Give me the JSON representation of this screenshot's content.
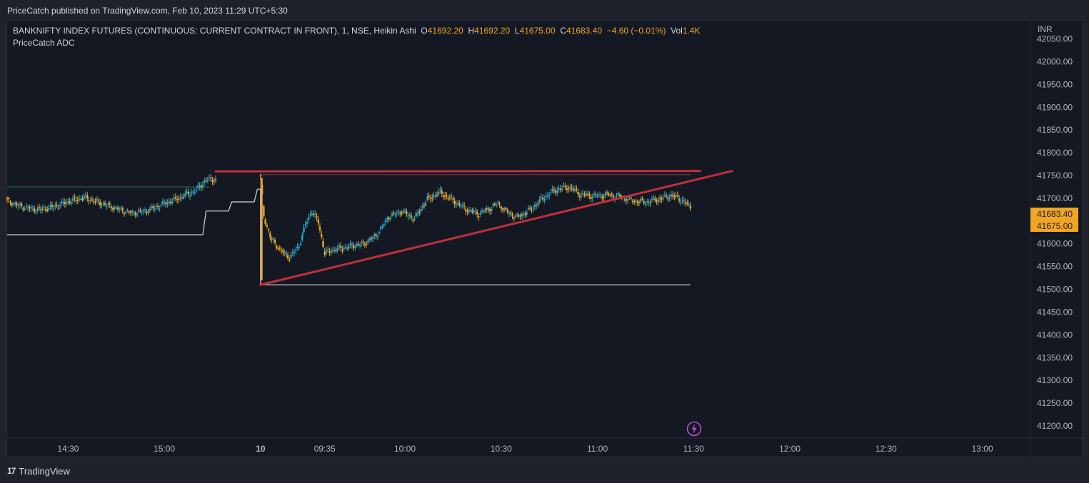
{
  "header": {
    "published": "PriceCatch published on TradingView.com, Feb 10, 2023 11:29 UTC+5:30"
  },
  "legend": {
    "symbol": "BANKNIFTY INDEX FUTURES (CONTINUOUS: CURRENT CONTRACT IN FRONT), 1, NSE, Heikin Ashi",
    "o_label": "O",
    "o_value": "41692.20",
    "h_label": "H",
    "h_value": "41692.20",
    "l_label": "L",
    "l_value": "41675.00",
    "c_label": "C",
    "c_value": "41683.40",
    "change": "−4.60 (−0.01%)",
    "vol_label": "Vol",
    "vol_value": "1.4K",
    "indicator": "PriceCatch ADC"
  },
  "footer": {
    "brand": "TradingView",
    "logo_text": "17"
  },
  "colors": {
    "up": "#26a6c9",
    "down": "#f0a524",
    "trendline": "#c0303a",
    "indicator": "#d8d8d8",
    "axis_text": "#b2b5be",
    "price_tag": "#f0a524"
  },
  "chart_data": {
    "type": "candlestick",
    "chart_style": "Heikin Ashi",
    "currency": "INR",
    "y_axis": {
      "unit": "INR",
      "ylim": [
        41175,
        42090
      ],
      "ticks": [
        "42050.00",
        "42000.00",
        "41950.00",
        "41900.00",
        "41850.00",
        "41800.00",
        "41750.00",
        "41700.00",
        "41650.00",
        "41600.00",
        "41550.00",
        "41500.00",
        "41450.00",
        "41400.00",
        "41350.00",
        "41300.00",
        "41250.00",
        "41200.00"
      ],
      "price_tags": [
        "41683.40",
        "41675.00"
      ]
    },
    "x_axis": {
      "ticks": [
        {
          "label": "14:30",
          "t": 0
        },
        {
          "label": "15:00",
          "t": 30
        },
        {
          "label": "10",
          "t": 60,
          "bold": true
        },
        {
          "label": "09:35",
          "t": 80
        },
        {
          "label": "10:00",
          "t": 105
        },
        {
          "label": "10:30",
          "t": 135
        },
        {
          "label": "11:00",
          "t": 165
        },
        {
          "label": "11:30",
          "t": 195
        },
        {
          "label": "12:00",
          "t": 225
        },
        {
          "label": "12:30",
          "t": 255
        },
        {
          "label": "13:00",
          "t": 285
        }
      ],
      "tlim": [
        -19,
        300
      ]
    },
    "segments": [
      {
        "name": "Feb 9 session",
        "t_start": -19,
        "t_end": 46,
        "anchors": [
          [
            -19,
            41695
          ],
          [
            -15,
            41683
          ],
          [
            -10,
            41675
          ],
          [
            -5,
            41680
          ],
          [
            0,
            41692
          ],
          [
            5,
            41702
          ],
          [
            10,
            41690
          ],
          [
            15,
            41678
          ],
          [
            20,
            41668
          ],
          [
            25,
            41674
          ],
          [
            30,
            41688
          ],
          [
            35,
            41702
          ],
          [
            40,
            41718
          ],
          [
            43,
            41740
          ],
          [
            46,
            41742
          ]
        ]
      },
      {
        "name": "Feb 10 session",
        "t_start": 60,
        "t_end": 194,
        "anchors": [
          [
            60,
            41745
          ],
          [
            61,
            41662
          ],
          [
            63,
            41615
          ],
          [
            66,
            41588
          ],
          [
            69,
            41570
          ],
          [
            72,
            41595
          ],
          [
            74,
            41642
          ],
          [
            76,
            41672
          ],
          [
            78,
            41648
          ],
          [
            80,
            41580
          ],
          [
            82,
            41585
          ],
          [
            86,
            41592
          ],
          [
            92,
            41600
          ],
          [
            96,
            41618
          ],
          [
            100,
            41660
          ],
          [
            104,
            41672
          ],
          [
            108,
            41655
          ],
          [
            112,
            41698
          ],
          [
            116,
            41713
          ],
          [
            120,
            41695
          ],
          [
            124,
            41676
          ],
          [
            128,
            41666
          ],
          [
            132,
            41680
          ],
          [
            134,
            41690
          ],
          [
            136,
            41675
          ],
          [
            140,
            41658
          ],
          [
            144,
            41675
          ],
          [
            148,
            41700
          ],
          [
            152,
            41718
          ],
          [
            156,
            41725
          ],
          [
            160,
            41708
          ],
          [
            164,
            41705
          ],
          [
            168,
            41708
          ],
          [
            172,
            41705
          ],
          [
            176,
            41695
          ],
          [
            180,
            41692
          ],
          [
            184,
            41698
          ],
          [
            188,
            41706
          ],
          [
            191,
            41698
          ],
          [
            194,
            41680
          ]
        ]
      }
    ],
    "lines": [
      {
        "name": "range-top",
        "style": "trendline",
        "points": [
          [
            46,
            41759
          ],
          [
            197,
            41760
          ]
        ]
      },
      {
        "name": "ascending-trendline",
        "style": "trendline",
        "points": [
          [
            60,
            41510
          ],
          [
            207,
            41760
          ]
        ]
      },
      {
        "name": "range-top-thin",
        "style": "thin",
        "points": [
          [
            60,
            41752
          ],
          [
            194,
            41752
          ]
        ]
      }
    ],
    "indicator": {
      "name": "PriceCatch ADC",
      "steps": [
        [
          -19,
          41620
        ],
        [
          42,
          41620
        ],
        [
          43,
          41672
        ],
        [
          50,
          41672
        ],
        [
          51,
          41692
        ],
        [
          58,
          41692
        ],
        [
          59,
          41720
        ],
        [
          60,
          41720
        ],
        [
          60,
          41510
        ],
        [
          194,
          41510
        ]
      ]
    },
    "prev_close_line": 41725
  }
}
